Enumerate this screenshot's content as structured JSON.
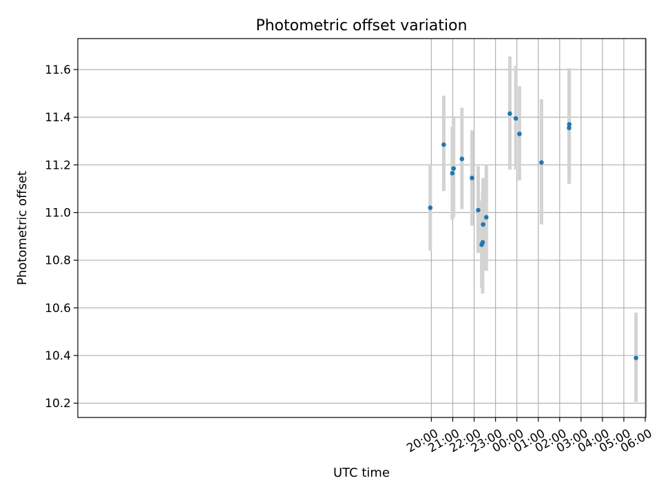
{
  "chart_data": {
    "type": "scatter",
    "title": "Photometric offset variation",
    "xlabel": "UTC time",
    "ylabel": "Photometric offset",
    "x_unit": "hours since 00:00 UTC (negative = previous day)",
    "xlim": [
      -20.53,
      6.03
    ],
    "ylim": [
      10.14,
      11.73
    ],
    "x_ticks": [
      {
        "value": -4,
        "label": "20:00"
      },
      {
        "value": -3,
        "label": "21:00"
      },
      {
        "value": -2,
        "label": "22:00"
      },
      {
        "value": -1,
        "label": "23:00"
      },
      {
        "value": 0,
        "label": "00:00"
      },
      {
        "value": 1,
        "label": "01:00"
      },
      {
        "value": 2,
        "label": "02:00"
      },
      {
        "value": 3,
        "label": "03:00"
      },
      {
        "value": 4,
        "label": "04:00"
      },
      {
        "value": 5,
        "label": "05:00"
      },
      {
        "value": 6,
        "label": "06:00"
      }
    ],
    "y_ticks": [
      {
        "value": 10.2,
        "label": "10.2"
      },
      {
        "value": 10.4,
        "label": "10.4"
      },
      {
        "value": 10.6,
        "label": "10.6"
      },
      {
        "value": 10.8,
        "label": "10.8"
      },
      {
        "value": 11.0,
        "label": "11.0"
      },
      {
        "value": 11.2,
        "label": "11.2"
      },
      {
        "value": 11.4,
        "label": "11.4"
      },
      {
        "value": 11.6,
        "label": "11.6"
      }
    ],
    "grid": true,
    "colors": {
      "point": "#1f77b4",
      "errorbar": "#d3d3d3",
      "grid": "#b0b0b0"
    },
    "points": [
      {
        "time": "19:57",
        "x": -4.05,
        "y": 11.02,
        "yerr_low": 10.84,
        "yerr_high": 11.2
      },
      {
        "time": "20:35",
        "x": -3.42,
        "y": 11.285,
        "yerr_low": 11.09,
        "yerr_high": 11.49
      },
      {
        "time": "20:59",
        "x": -3.02,
        "y": 11.165,
        "yerr_low": 10.97,
        "yerr_high": 11.36
      },
      {
        "time": "21:02",
        "x": -2.96,
        "y": 11.185,
        "yerr_low": 10.98,
        "yerr_high": 11.4
      },
      {
        "time": "21:26",
        "x": -2.57,
        "y": 11.225,
        "yerr_low": 11.015,
        "yerr_high": 11.44
      },
      {
        "time": "21:54",
        "x": -2.1,
        "y": 11.145,
        "yerr_low": 10.945,
        "yerr_high": 11.345
      },
      {
        "time": "22:11",
        "x": -1.81,
        "y": 11.01,
        "yerr_low": 10.83,
        "yerr_high": 11.195
      },
      {
        "time": "22:21",
        "x": -1.645,
        "y": 10.865,
        "yerr_low": 10.685,
        "yerr_high": 11.05
      },
      {
        "time": "22:24",
        "x": -1.6,
        "y": 10.875,
        "yerr_low": 10.66,
        "yerr_high": 11.09
      },
      {
        "time": "22:25",
        "x": -1.58,
        "y": 10.95,
        "yerr_low": 10.76,
        "yerr_high": 11.145
      },
      {
        "time": "22:34",
        "x": -1.43,
        "y": 10.98,
        "yerr_low": 10.755,
        "yerr_high": 11.2
      },
      {
        "time": "23:40",
        "x": -0.33,
        "y": 11.415,
        "yerr_low": 11.18,
        "yerr_high": 11.655
      },
      {
        "time": "23:57",
        "x": -0.05,
        "y": 11.395,
        "yerr_low": 11.18,
        "yerr_high": 11.615
      },
      {
        "time": "00:07",
        "x": 0.12,
        "y": 11.33,
        "yerr_low": 11.135,
        "yerr_high": 11.53
      },
      {
        "time": "01:09",
        "x": 1.15,
        "y": 11.21,
        "yerr_low": 10.95,
        "yerr_high": 11.475
      },
      {
        "time": "02:26",
        "x": 2.44,
        "y": 11.355,
        "yerr_low": 11.12,
        "yerr_high": 11.59
      },
      {
        "time": "02:27",
        "x": 2.45,
        "y": 11.37,
        "yerr_low": 11.13,
        "yerr_high": 11.605
      },
      {
        "time": "05:34",
        "x": 5.57,
        "y": 10.39,
        "yerr_low": 10.205,
        "yerr_high": 10.58
      }
    ]
  }
}
